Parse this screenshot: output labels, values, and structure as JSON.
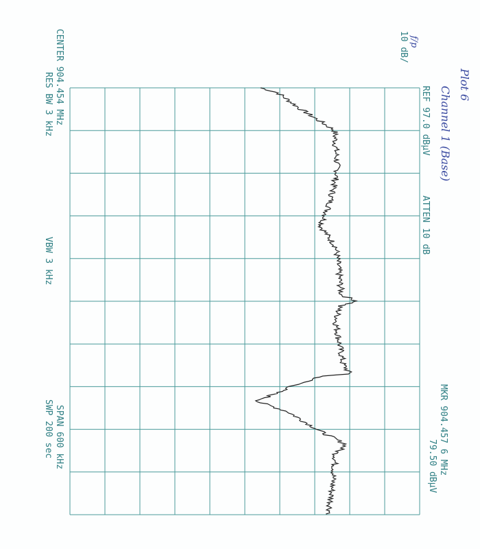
{
  "header": {
    "note_title": "Plot 6",
    "note_subtitle": "Channel 1 (Base)",
    "note_mark": "f/p",
    "scale": "10 dB/",
    "ref": "REF  97.0 dBµV",
    "atten": "ATTEN 10 dB",
    "marker_freq": "MKR 904.457 6 MHz",
    "marker_level": "79.50 dBµV"
  },
  "footer": {
    "center": "CENTER 904.454 MHz",
    "res_bw": "RES BW 3 kHz",
    "vbw": "VBW 3 kHz",
    "span": "SPAN 600 kHz",
    "sweep": "SWP 200  sec"
  }
}
